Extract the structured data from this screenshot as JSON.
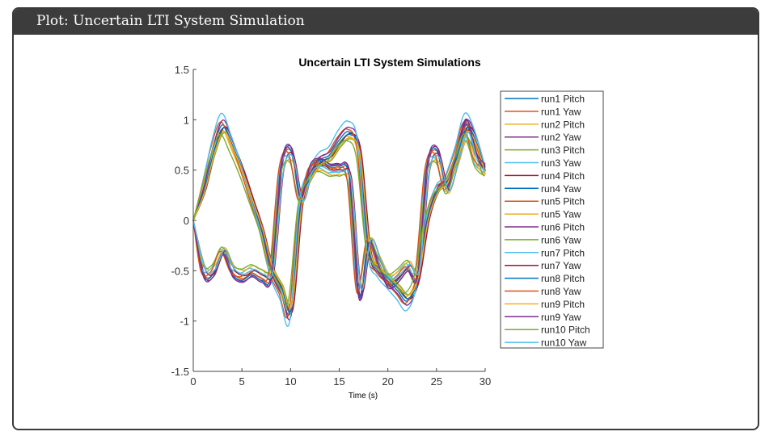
{
  "panel": {
    "title": "Plot: Uncertain LTI System Simulation"
  },
  "chart_data": {
    "type": "line",
    "title": "Uncertain LTI System Simulations",
    "xlabel": "Time (s)",
    "ylabel": "",
    "xlim": [
      0,
      30
    ],
    "ylim": [
      -1.5,
      1.5
    ],
    "xticks": [
      0,
      5,
      10,
      15,
      20,
      25,
      30
    ],
    "yticks": [
      -1.5,
      -1,
      -0.5,
      0,
      0.5,
      1,
      1.5
    ],
    "ytick_labels": [
      "-1.5",
      "-1",
      "-0.5",
      "0",
      "0.5",
      "1",
      "1.5"
    ],
    "legend_position": "outside-right",
    "grid": false,
    "x": [
      0,
      1,
      2,
      3,
      4,
      5,
      6,
      7,
      8,
      9,
      10,
      11,
      12,
      13,
      14,
      15,
      16,
      17,
      18,
      19,
      20,
      21,
      22,
      23,
      24,
      25,
      26,
      27,
      28,
      29,
      30
    ],
    "profiles": {
      "pitch": [
        0,
        0.3,
        0.7,
        0.95,
        0.75,
        0.5,
        0.2,
        -0.1,
        -0.5,
        -0.7,
        -0.9,
        0.15,
        0.45,
        0.6,
        0.65,
        0.8,
        0.88,
        0.7,
        -0.3,
        -0.5,
        -0.6,
        -0.7,
        -0.8,
        -0.6,
        0.0,
        0.3,
        0.4,
        0.65,
        0.95,
        0.8,
        0.5
      ],
      "yaw": [
        0,
        -0.5,
        -0.5,
        -0.3,
        -0.5,
        -0.55,
        -0.5,
        -0.55,
        -0.5,
        0.5,
        0.65,
        0.2,
        0.5,
        0.55,
        0.5,
        0.5,
        0.4,
        -0.7,
        -0.2,
        -0.4,
        -0.6,
        -0.55,
        -0.45,
        -0.5,
        0.5,
        0.65,
        0.3,
        0.6,
        0.9,
        0.6,
        0.5
      ]
    },
    "series": [
      {
        "name": "run1 Pitch",
        "profile": "pitch",
        "gain": 1.0,
        "shift": 0,
        "color": "#0072BD"
      },
      {
        "name": "run1 Yaw",
        "profile": "yaw",
        "gain": 1.05,
        "shift": 0.1,
        "color": "#D95319"
      },
      {
        "name": "run2 Pitch",
        "profile": "pitch",
        "gain": 0.95,
        "shift": -0.1,
        "color": "#EDB120"
      },
      {
        "name": "run2 Yaw",
        "profile": "yaw",
        "gain": 1.1,
        "shift": 0.15,
        "color": "#7E2F8E"
      },
      {
        "name": "run3 Pitch",
        "profile": "pitch",
        "gain": 0.92,
        "shift": 0.2,
        "color": "#77AC30"
      },
      {
        "name": "run3 Yaw",
        "profile": "yaw",
        "gain": 0.95,
        "shift": -0.15,
        "color": "#4DBEEE"
      },
      {
        "name": "run4 Pitch",
        "profile": "pitch",
        "gain": 0.98,
        "shift": 0.25,
        "color": "#A2142F"
      },
      {
        "name": "run4 Yaw",
        "profile": "yaw",
        "gain": 1.08,
        "shift": 0,
        "color": "#0072BD"
      },
      {
        "name": "run5 Pitch",
        "profile": "pitch",
        "gain": 1.03,
        "shift": -0.2,
        "color": "#D95319"
      },
      {
        "name": "run5 Yaw",
        "profile": "yaw",
        "gain": 0.9,
        "shift": 0.2,
        "color": "#EDB120"
      },
      {
        "name": "run6 Pitch",
        "profile": "pitch",
        "gain": 1.05,
        "shift": 0.05,
        "color": "#7E2F8E"
      },
      {
        "name": "run6 Yaw",
        "profile": "yaw",
        "gain": 0.88,
        "shift": -0.05,
        "color": "#77AC30"
      },
      {
        "name": "run7 Pitch",
        "profile": "pitch",
        "gain": 1.12,
        "shift": -0.1,
        "color": "#4DBEEE"
      },
      {
        "name": "run7 Yaw",
        "profile": "yaw",
        "gain": 1.0,
        "shift": 0.3,
        "color": "#A2142F"
      },
      {
        "name": "run8 Pitch",
        "profile": "pitch",
        "gain": 0.97,
        "shift": 0.1,
        "color": "#0072BD"
      },
      {
        "name": "run8 Yaw",
        "profile": "yaw",
        "gain": 1.02,
        "shift": -0.2,
        "color": "#D95319"
      },
      {
        "name": "run9 Pitch",
        "profile": "pitch",
        "gain": 0.93,
        "shift": 0.15,
        "color": "#EDB120"
      },
      {
        "name": "run9 Yaw",
        "profile": "yaw",
        "gain": 1.12,
        "shift": 0.05,
        "color": "#7E2F8E"
      },
      {
        "name": "run10 Pitch",
        "profile": "pitch",
        "gain": 0.9,
        "shift": -0.25,
        "color": "#77AC30"
      },
      {
        "name": "run10 Yaw",
        "profile": "yaw",
        "gain": 0.97,
        "shift": 0.25,
        "color": "#4DBEEE"
      }
    ]
  }
}
